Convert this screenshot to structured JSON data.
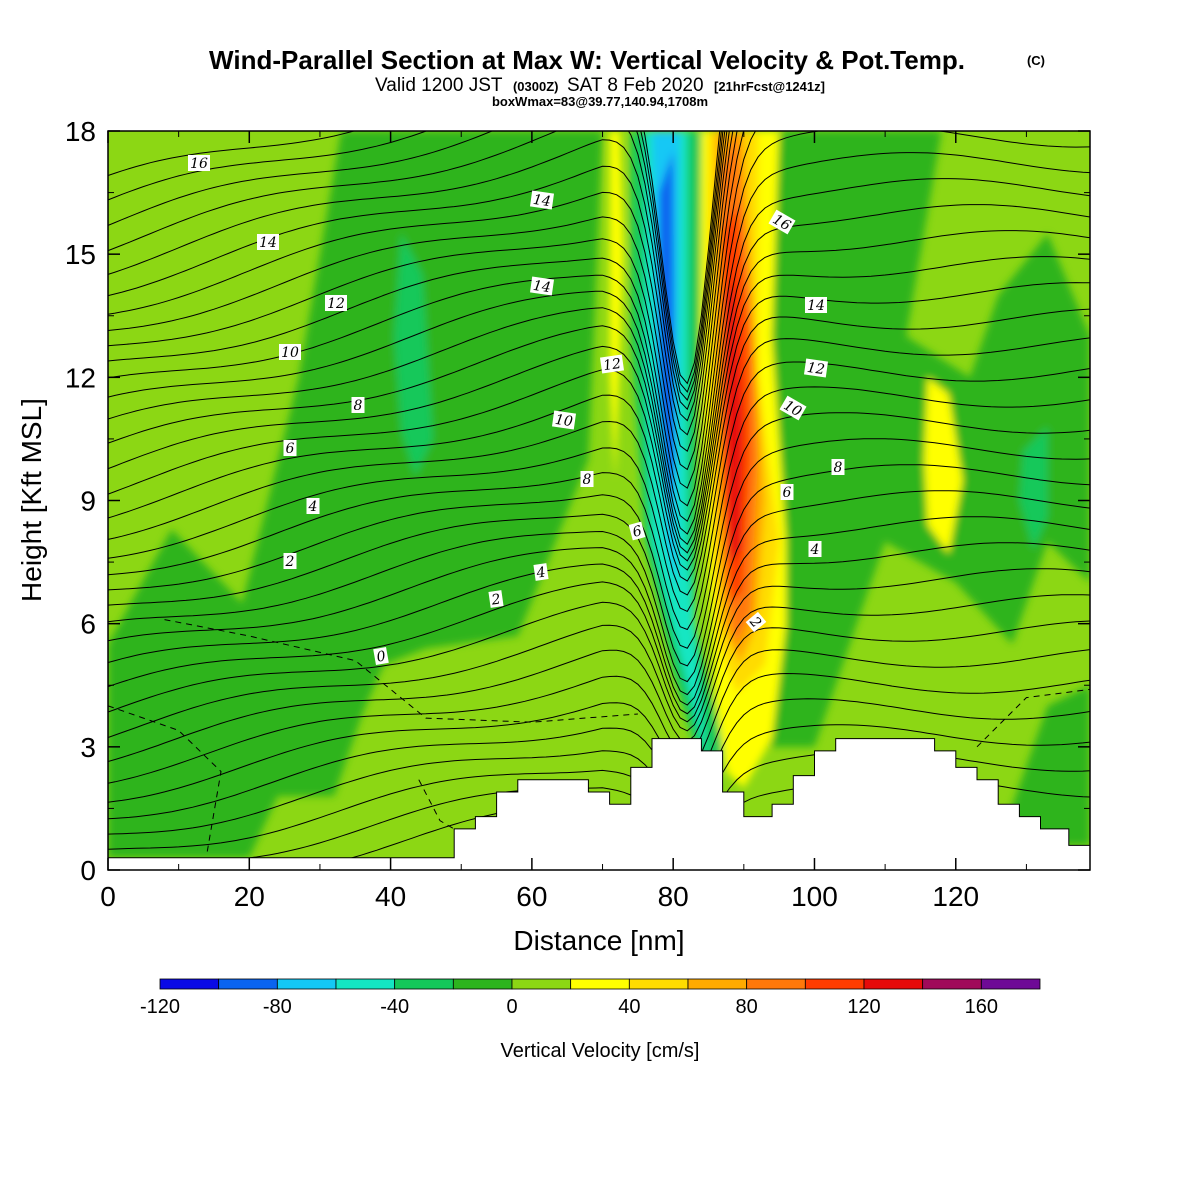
{
  "header": {
    "title": "Wind-Parallel Section at Max W: Vertical Velocity & Pot.Temp.",
    "copyright": "(C)",
    "valid_prefix": "Valid 1200 JST",
    "valid_utc": "(0300Z)",
    "valid_date": "SAT 8 Feb 2020",
    "forecast": "[21hrFcst@1241z]",
    "boxwmax": "boxWmax=83@39.77,140.94,1708m"
  },
  "chart_data": {
    "type": "heatmap",
    "xlabel": "Distance [nm]",
    "ylabel": "Height [Kft MSL]",
    "xlim": [
      0,
      139
    ],
    "ylim": [
      0,
      18
    ],
    "x_ticks": [
      "0",
      "20",
      "40",
      "60",
      "80",
      "100",
      "120"
    ],
    "y_ticks": [
      "0",
      "3",
      "6",
      "9",
      "12",
      "15",
      "18"
    ],
    "colorbar": {
      "label": "Vertical Velocity [cm/s]",
      "range": [
        -120,
        180
      ],
      "tick_labels": [
        "-120",
        "-80",
        "-40",
        "0",
        "40",
        "80",
        "120",
        "160"
      ],
      "colors": [
        "#0a0ae6",
        "#0a64f0",
        "#14c8f5",
        "#14e6c3",
        "#14c85a",
        "#2db41e",
        "#8cd714",
        "#ffff00",
        "#ffdc00",
        "#ffaa00",
        "#ff780a",
        "#ff3c00",
        "#e60a0a",
        "#a00a5a",
        "#6e0a96"
      ]
    },
    "contour_labels": [
      "16",
      "14",
      "12",
      "10",
      "8",
      "6",
      "4",
      "2",
      "0"
    ],
    "terrain_max_kft": 3.2
  }
}
